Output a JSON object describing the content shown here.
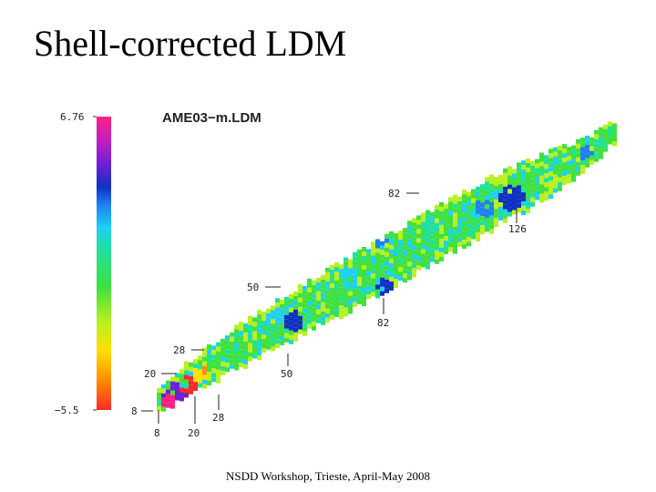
{
  "slide": {
    "title": "Shell-corrected LDM",
    "footer": "NSDD Workshop, Trieste, April-May 2008"
  },
  "figure": {
    "title": "AME03−m.LDM",
    "colorbar": {
      "max_label": "6.76",
      "min_label": "−5.5",
      "min": -5.5,
      "max": 6.76,
      "colors": [
        "#ff2828",
        "#ff8c00",
        "#ffe000",
        "#b8f020",
        "#40e040",
        "#20e0a0",
        "#20d0f0",
        "#2080f0",
        "#1030c0",
        "#7020d0",
        "#c020c0",
        "#ff2080"
      ]
    },
    "magic_labels": {
      "n8": "8",
      "n20": "20",
      "n28": "28",
      "n50": "50",
      "n82": "82",
      "n126": "126",
      "z8": "8",
      "z20": "20",
      "z28": "28",
      "z50": "50",
      "z82": "82"
    }
  }
}
